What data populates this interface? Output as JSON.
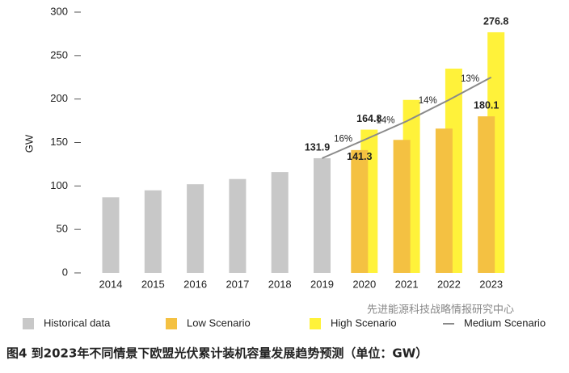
{
  "chart_data": {
    "type": "bar",
    "y_label": "GW",
    "caption": "图4 到2023年不同情景下欧盟光伏累计装机容量发展趋势预测（单位：GW）",
    "watermark": "先进能源科技战略情报研究中心",
    "categories": [
      "2014",
      "2015",
      "2016",
      "2017",
      "2018",
      "2019",
      "2020",
      "2021",
      "2022",
      "2023"
    ],
    "ylim": [
      0,
      300
    ],
    "yticks": [
      0,
      50,
      100,
      150,
      200,
      250,
      300
    ],
    "series": [
      {
        "name": "Historical data",
        "color": "#c8c8c8",
        "values": [
          87,
          95,
          102,
          108,
          116,
          131.9,
          null,
          null,
          null,
          null
        ],
        "value_labels": [
          null,
          null,
          null,
          null,
          null,
          "131.9",
          null,
          null,
          null,
          null
        ]
      },
      {
        "name": "Low Scenario",
        "color": "#f4c142",
        "values": [
          null,
          null,
          null,
          null,
          null,
          null,
          141.3,
          153,
          166,
          180.1
        ],
        "value_labels": [
          null,
          null,
          null,
          null,
          null,
          null,
          "141.3",
          null,
          null,
          "180.1"
        ]
      },
      {
        "name": "High Scenario",
        "color": "#fff23a",
        "values": [
          null,
          null,
          null,
          null,
          null,
          null,
          164.8,
          199,
          235,
          276.8
        ],
        "value_labels": [
          null,
          null,
          null,
          null,
          null,
          null,
          "164.8",
          null,
          null,
          "276.8"
        ]
      },
      {
        "name": "Medium Scenario",
        "type": "line",
        "color": "#8a8a8a",
        "values": [
          null,
          null,
          null,
          null,
          null,
          131.9,
          153,
          174.5,
          199,
          225
        ],
        "growth_labels": [
          null,
          null,
          null,
          null,
          null,
          null,
          "16%",
          "14%",
          "14%",
          "13%"
        ]
      }
    ]
  }
}
